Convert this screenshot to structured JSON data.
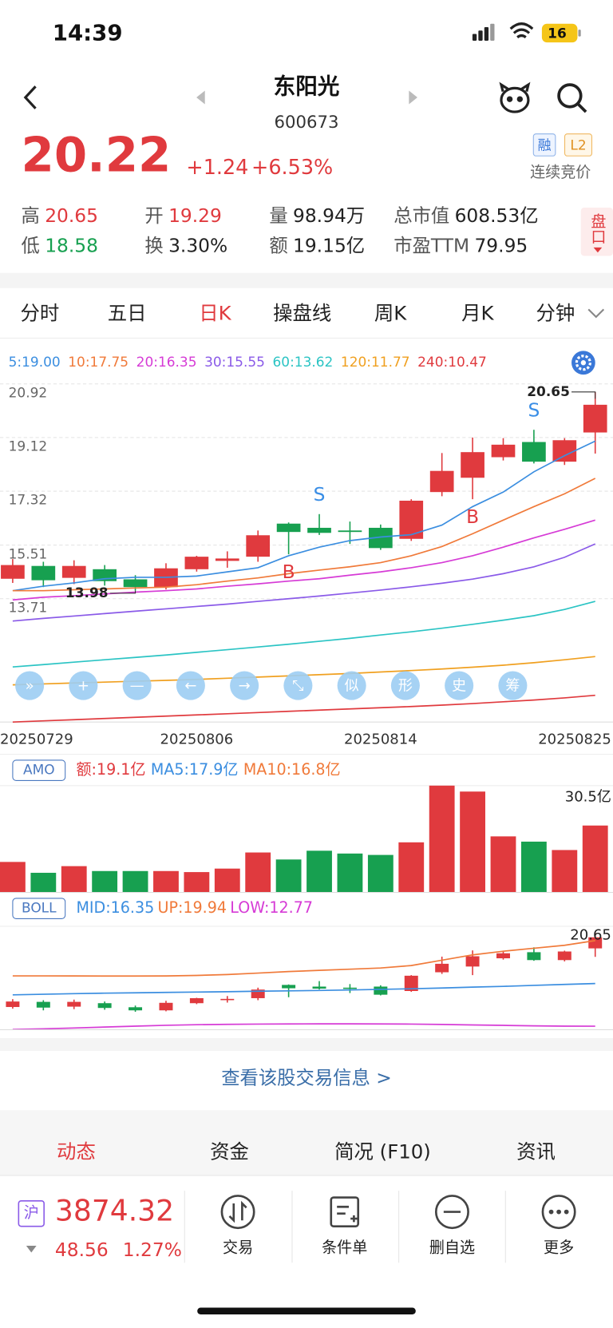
{
  "status_bar": {
    "time": "14:39",
    "battery": "16"
  },
  "header": {
    "name": "东阳光",
    "code": "600673"
  },
  "quote": {
    "price": "20.22",
    "change": "+1.24",
    "change_pct": "+6.53%",
    "badges": [
      "融",
      "L2"
    ],
    "status": "连续竞价"
  },
  "stats": {
    "rows": [
      [
        {
          "label": "高",
          "value": "20.65",
          "tone": "up"
        },
        {
          "label": "开",
          "value": "19.29",
          "tone": "up"
        },
        {
          "label": "量",
          "value": "98.94万",
          "tone": "plain"
        },
        {
          "label": "总市值",
          "value": "608.53亿",
          "tone": "plain"
        }
      ],
      [
        {
          "label": "低",
          "value": "18.58",
          "tone": "down"
        },
        {
          "label": "换",
          "value": "3.30%",
          "tone": "plain"
        },
        {
          "label": "额",
          "value": "19.15亿",
          "tone": "plain"
        },
        {
          "label": "市盈TTM",
          "value": "79.95",
          "tone": "plain"
        }
      ]
    ]
  },
  "side_button": "盘口",
  "tabs": {
    "items": [
      "分时",
      "五日",
      "日K",
      "操盘线",
      "周K",
      "月K",
      "分钟"
    ],
    "active": 2
  },
  "toolbar": [
    "»",
    "+",
    "—",
    "←",
    "→",
    "⤡",
    "似",
    "形",
    "史",
    "筹"
  ],
  "chart_data": [
    {
      "type": "candlestick",
      "categories": [
        "20250729",
        null,
        null,
        null,
        null,
        null,
        "20250806",
        null,
        null,
        null,
        null,
        null,
        "20250814",
        null,
        null,
        null,
        null,
        null,
        null,
        "20250825"
      ],
      "open": [
        14.38,
        14.81,
        14.41,
        14.7,
        14.36,
        14.1,
        14.7,
        14.98,
        15.12,
        16.23,
        16.09,
        16.0,
        16.09,
        15.72,
        17.29,
        17.77,
        18.46,
        18.97,
        18.31,
        19.29
      ],
      "high": [
        15.04,
        14.95,
        15.0,
        14.84,
        14.5,
        14.9,
        15.15,
        15.3,
        16.0,
        16.27,
        16.55,
        16.3,
        16.2,
        17.05,
        18.6,
        19.12,
        19.1,
        19.38,
        19.1,
        20.65
      ],
      "low": [
        14.24,
        14.1,
        14.2,
        14.15,
        13.98,
        14.02,
        14.62,
        14.75,
        14.95,
        15.2,
        15.85,
        15.55,
        15.35,
        15.65,
        17.15,
        17.05,
        18.35,
        18.25,
        18.2,
        18.58
      ],
      "close": [
        14.84,
        14.33,
        14.81,
        14.3,
        14.1,
        14.73,
        15.12,
        15.06,
        15.84,
        15.95,
        15.92,
        15.95,
        15.41,
        17.0,
        18.0,
        18.63,
        18.88,
        18.31,
        19.03,
        20.22
      ],
      "up_color": "#e03a3e",
      "down_color": "#17a050",
      "signals": [
        null,
        null,
        null,
        null,
        null,
        null,
        null,
        null,
        null,
        "B",
        "S",
        null,
        null,
        null,
        null,
        "B",
        null,
        "S",
        null,
        null
      ],
      "buy_color": "#e03a3e",
      "sell_color": "#3a8ee6",
      "max_label": 20.65,
      "min_label": 13.98,
      "ylim": [
        9.57,
        20.92
      ],
      "yticks": [
        20.92,
        19.12,
        17.32,
        15.51,
        13.71
      ],
      "grid": true,
      "series": [
        {
          "name": "5:19.00",
          "color": "#3b8ee0",
          "values": [
            13.98,
            14.13,
            14.24,
            14.38,
            14.43,
            14.43,
            14.47,
            14.61,
            14.75,
            15.15,
            15.44,
            15.66,
            15.78,
            15.86,
            16.18,
            16.8,
            17.29,
            17.97,
            18.51,
            19.0
          ]
        },
        {
          "name": "10:17.75",
          "color": "#f07a3a",
          "values": [
            13.98,
            13.98,
            14.01,
            14.04,
            14.07,
            14.1,
            14.18,
            14.3,
            14.41,
            14.55,
            14.67,
            14.78,
            14.92,
            15.15,
            15.46,
            15.89,
            16.35,
            16.8,
            17.23,
            17.75
          ]
        },
        {
          "name": "20:16.35",
          "color": "#d63bd6",
          "values": [
            13.67,
            13.76,
            13.81,
            13.87,
            13.93,
            13.98,
            14.04,
            14.13,
            14.21,
            14.3,
            14.38,
            14.5,
            14.61,
            14.75,
            14.92,
            15.15,
            15.44,
            15.75,
            16.04,
            16.35
          ]
        },
        {
          "name": "30:15.55",
          "color": "#8a5ae8",
          "values": [
            12.96,
            13.05,
            13.13,
            13.21,
            13.29,
            13.37,
            13.45,
            13.53,
            13.62,
            13.71,
            13.8,
            13.9,
            14.0,
            14.11,
            14.23,
            14.37,
            14.55,
            14.78,
            15.1,
            15.55
          ]
        },
        {
          "name": "60:13.62",
          "color": "#2bc4c4",
          "values": [
            11.42,
            11.5,
            11.58,
            11.66,
            11.74,
            11.82,
            11.91,
            12.0,
            12.09,
            12.18,
            12.28,
            12.38,
            12.49,
            12.6,
            12.72,
            12.85,
            12.99,
            13.14,
            13.35,
            13.62
          ]
        },
        {
          "name": "120:11.77",
          "color": "#f0a020",
          "values": [
            10.82,
            10.85,
            10.88,
            10.91,
            10.94,
            10.97,
            11.0,
            11.04,
            11.08,
            11.12,
            11.16,
            11.2,
            11.25,
            11.3,
            11.35,
            11.41,
            11.48,
            11.56,
            11.66,
            11.77
          ]
        },
        {
          "name": "240:10.47",
          "color": "#e03a3e",
          "values": [
            9.57,
            9.61,
            9.65,
            9.69,
            9.73,
            9.77,
            9.81,
            9.85,
            9.89,
            9.93,
            9.97,
            10.01,
            10.05,
            10.09,
            10.14,
            10.19,
            10.25,
            10.31,
            10.38,
            10.47
          ]
        }
      ]
    },
    {
      "type": "bar",
      "indicator": "AMO",
      "legend": [
        {
          "text": "额:19.1亿",
          "color": "#e03a3e"
        },
        {
          "text": "MA5:17.9亿",
          "color": "#3b8ee0"
        },
        {
          "text": "MA10:16.8亿",
          "color": "#f07a3a"
        }
      ],
      "values": [
        8.7,
        5.6,
        7.5,
        6.1,
        6.1,
        6.1,
        5.8,
        6.8,
        11.4,
        9.4,
        11.9,
        11.1,
        10.7,
        14.3,
        30.5,
        28.8,
        16.0,
        14.5,
        12.1,
        19.1
      ],
      "ylim": [
        0,
        30.5
      ],
      "max_label": "30.5亿"
    },
    {
      "type": "boll",
      "indicator": "BOLL",
      "series": [
        {
          "name": "MID:16.35",
          "color": "#3b8ee0",
          "values": [
            15.4,
            15.45,
            15.5,
            15.54,
            15.57,
            15.6,
            15.63,
            15.66,
            15.7,
            15.73,
            15.77,
            15.81,
            15.86,
            15.91,
            15.97,
            16.04,
            16.11,
            16.19,
            16.27,
            16.35
          ]
        },
        {
          "name": "UP:19.94",
          "color": "#f07a3a",
          "values": [
            16.99,
            16.99,
            16.98,
            16.97,
            16.97,
            16.98,
            17.02,
            17.1,
            17.22,
            17.35,
            17.45,
            17.55,
            17.65,
            17.85,
            18.3,
            18.75,
            19.05,
            19.3,
            19.55,
            19.94
          ]
        },
        {
          "name": "LOW:12.77",
          "color": "#d63bd6",
          "values": [
            12.5,
            12.55,
            12.62,
            12.7,
            12.78,
            12.85,
            12.9,
            12.93,
            12.95,
            12.96,
            12.97,
            12.97,
            12.96,
            12.95,
            12.92,
            12.88,
            12.84,
            12.8,
            12.78,
            12.77
          ]
        }
      ],
      "ylim": [
        12.48,
        21.14
      ],
      "max_label": 20.65
    }
  ],
  "trade_link": "查看该股交易信息 >",
  "section_tabs": {
    "items": [
      "动态",
      "资金",
      "简况 (F10)",
      "资讯"
    ],
    "active": 0
  },
  "footer": {
    "index": {
      "market": "沪",
      "value": "3874.32",
      "change": "48.56",
      "change_pct": "1.27%"
    },
    "actions": [
      "交易",
      "条件单",
      "删自选",
      "更多"
    ]
  }
}
